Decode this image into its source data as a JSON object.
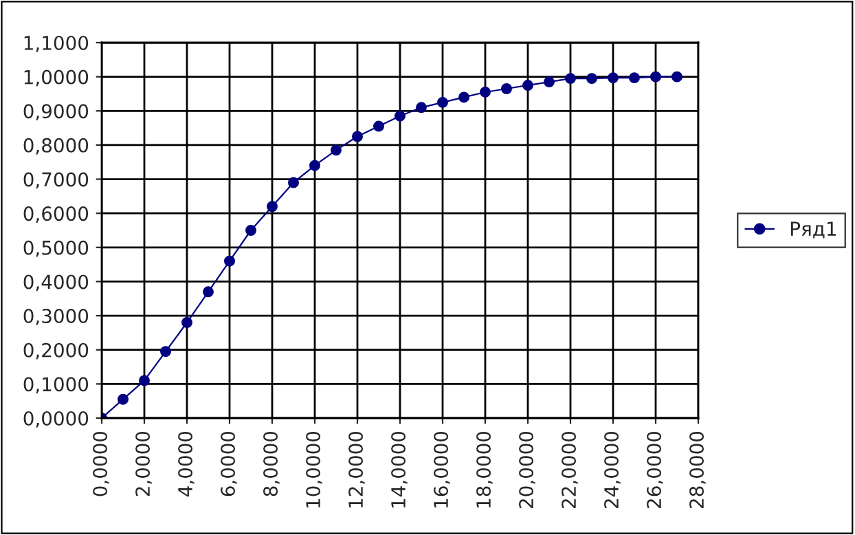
{
  "chart_data": {
    "type": "line",
    "categories": [
      "0,0000",
      null,
      "2,0000",
      null,
      "4,0000",
      null,
      "6,0000",
      null,
      "8,0000",
      null,
      "10,0000",
      null,
      "12,0000",
      null,
      "14,0000",
      null,
      "16,0000",
      null,
      "18,0000",
      null,
      "20,0000",
      null,
      "22,0000",
      null,
      "24,0000",
      null,
      "26,0000",
      null,
      "28,0000"
    ],
    "series": [
      {
        "name": "Ряд1",
        "color": "#000080",
        "values": [
          0.0,
          0.055,
          0.11,
          0.195,
          0.28,
          0.37,
          0.46,
          0.55,
          0.62,
          0.69,
          0.74,
          0.785,
          0.825,
          0.855,
          0.885,
          0.91,
          0.925,
          0.94,
          0.955,
          0.965,
          0.975,
          0.985,
          0.995,
          0.995,
          0.997,
          0.997,
          1.0,
          1.0,
          null
        ]
      }
    ],
    "ylim": [
      0,
      1.1
    ],
    "yticks": [
      {
        "value": 0,
        "label": "0,0000"
      },
      {
        "value": 0.1,
        "label": "0,1000"
      },
      {
        "value": 0.2,
        "label": "0,2000"
      },
      {
        "value": 0.3,
        "label": "0,3000"
      },
      {
        "value": 0.4,
        "label": "0,4000"
      },
      {
        "value": 0.5,
        "label": "0,5000"
      },
      {
        "value": 0.6,
        "label": "0,6000"
      },
      {
        "value": 0.7,
        "label": "0,7000"
      },
      {
        "value": 0.8,
        "label": "0,8000"
      },
      {
        "value": 0.9,
        "label": "0,9000"
      },
      {
        "value": 1.0,
        "label": "1,0000"
      },
      {
        "value": 1.1,
        "label": "1,1000"
      }
    ],
    "grid": true,
    "legend": "right",
    "marker": "circle",
    "line_style": "solid"
  }
}
